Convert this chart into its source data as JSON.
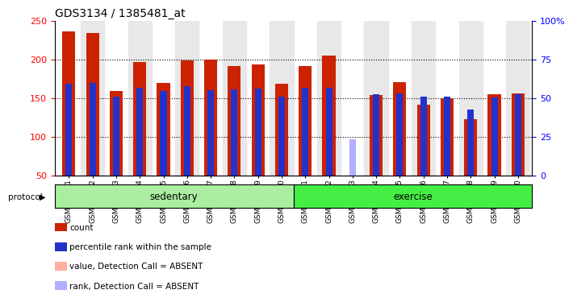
{
  "title": "GDS3134 / 1385481_at",
  "samples": [
    "GSM184851",
    "GSM184852",
    "GSM184853",
    "GSM184854",
    "GSM184855",
    "GSM184856",
    "GSM184857",
    "GSM184858",
    "GSM184859",
    "GSM184860",
    "GSM184861",
    "GSM184862",
    "GSM184863",
    "GSM184864",
    "GSM184865",
    "GSM184866",
    "GSM184867",
    "GSM184868",
    "GSM184869",
    "GSM184870"
  ],
  "red_values": [
    236,
    234,
    159,
    196,
    169,
    198,
    199,
    191,
    193,
    168,
    191,
    205,
    50,
    154,
    170,
    141,
    150,
    122,
    155,
    156
  ],
  "blue_values": [
    168,
    169,
    152,
    163,
    159,
    165,
    160,
    161,
    162,
    152,
    163,
    163,
    50,
    155,
    156,
    152,
    152,
    135,
    151,
    155
  ],
  "absent_red_values": [
    null,
    null,
    null,
    null,
    null,
    null,
    null,
    null,
    null,
    null,
    null,
    null,
    50,
    null,
    null,
    null,
    null,
    null,
    null,
    null
  ],
  "absent_blue_values": [
    null,
    null,
    null,
    null,
    null,
    null,
    null,
    null,
    null,
    null,
    null,
    null,
    96,
    null,
    null,
    null,
    null,
    null,
    null,
    null
  ],
  "sedentary_count": 10,
  "exercise_count": 10,
  "ylim_left": [
    50,
    250
  ],
  "ylim_right": [
    0,
    100
  ],
  "left_ticks": [
    50,
    100,
    150,
    200,
    250
  ],
  "right_ticks": [
    0,
    25,
    50,
    75,
    100
  ],
  "right_tick_labels": [
    "0",
    "25",
    "50",
    "75",
    "100%"
  ],
  "bar_color_red": "#CC2200",
  "bar_color_blue": "#2233CC",
  "bar_color_absent_red": "#FFB0A0",
  "bar_color_absent_blue": "#B0B0FF",
  "protocol_bg_sedentary": "#AAEEA0",
  "protocol_bg_exercise": "#44EE44",
  "legend_colors": [
    "#CC2200",
    "#2233CC",
    "#FFB0A0",
    "#B0B0FF"
  ],
  "legend_labels": [
    "count",
    "percentile rank within the sample",
    "value, Detection Call = ABSENT",
    "rank, Detection Call = ABSENT"
  ]
}
